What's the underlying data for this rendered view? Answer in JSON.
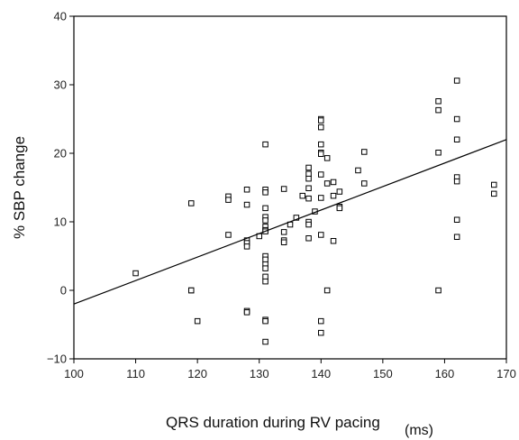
{
  "chart_data": {
    "type": "scatter",
    "xlabel": "QRS duration during RV pacing",
    "xunit": "(ms)",
    "ylabel": "% SBP change",
    "xlim": [
      100,
      170
    ],
    "ylim": [
      -10,
      40
    ],
    "xticks": [
      "100",
      "110",
      "120",
      "130",
      "140",
      "150",
      "160",
      "170"
    ],
    "yticks": [
      "-10",
      "0",
      "10",
      "20",
      "30",
      "40"
    ],
    "grid": false,
    "marker": "open-square",
    "fit_line": {
      "x": [
        100,
        170
      ],
      "y": [
        -2,
        22
      ]
    },
    "points": [
      [
        110,
        2.5
      ],
      [
        119,
        12.7
      ],
      [
        119,
        0
      ],
      [
        119,
        0
      ],
      [
        120,
        -4.5
      ],
      [
        125,
        13.7
      ],
      [
        125,
        13.2
      ],
      [
        125,
        8.1
      ],
      [
        128,
        14.7
      ],
      [
        128,
        12.5
      ],
      [
        128,
        7.3
      ],
      [
        128,
        6.9
      ],
      [
        128,
        6.4
      ],
      [
        128,
        -3
      ],
      [
        128,
        -3.2
      ],
      [
        130,
        7.9
      ],
      [
        131,
        21.3
      ],
      [
        131,
        14.7
      ],
      [
        131,
        14.3
      ],
      [
        131,
        12
      ],
      [
        131,
        10.7
      ],
      [
        131,
        10.2
      ],
      [
        131,
        9.3
      ],
      [
        131,
        8.8
      ],
      [
        131,
        8.6
      ],
      [
        131,
        5
      ],
      [
        131,
        4.5
      ],
      [
        131,
        3.8
      ],
      [
        131,
        3.2
      ],
      [
        131,
        2
      ],
      [
        131,
        1.3
      ],
      [
        131,
        -4.3
      ],
      [
        131,
        -4.5
      ],
      [
        131,
        -7.5
      ],
      [
        134,
        14.8
      ],
      [
        134,
        8.5
      ],
      [
        134,
        7.3
      ],
      [
        134,
        7
      ],
      [
        135,
        9.6
      ],
      [
        136,
        10.6
      ],
      [
        137,
        13.8
      ],
      [
        138,
        17.9
      ],
      [
        138,
        17
      ],
      [
        138,
        16.3
      ],
      [
        138,
        14.9
      ],
      [
        138,
        13.4
      ],
      [
        138,
        10
      ],
      [
        138,
        9.6
      ],
      [
        138,
        7.6
      ],
      [
        139,
        11.5
      ],
      [
        140,
        25
      ],
      [
        140,
        24.8
      ],
      [
        140,
        23.8
      ],
      [
        140,
        21.3
      ],
      [
        140,
        20.1
      ],
      [
        140,
        19.9
      ],
      [
        140,
        16.9
      ],
      [
        140,
        13.5
      ],
      [
        140,
        8.1
      ],
      [
        140,
        -4.5
      ],
      [
        140,
        -6.2
      ],
      [
        141,
        19.3
      ],
      [
        141,
        15.6
      ],
      [
        141,
        0
      ],
      [
        142,
        15.8
      ],
      [
        142,
        13.8
      ],
      [
        142,
        7.2
      ],
      [
        143,
        14.4
      ],
      [
        143,
        12.2
      ],
      [
        143,
        12
      ],
      [
        146,
        17.5
      ],
      [
        147,
        20.2
      ],
      [
        147,
        15.6
      ],
      [
        159,
        27.6
      ],
      [
        159,
        26.3
      ],
      [
        159,
        20.1
      ],
      [
        159,
        0
      ],
      [
        162,
        30.6
      ],
      [
        162,
        25
      ],
      [
        162,
        22
      ],
      [
        162,
        16.5
      ],
      [
        162,
        15.9
      ],
      [
        162,
        10.3
      ],
      [
        162,
        7.8
      ],
      [
        168,
        15.4
      ],
      [
        168,
        14.1
      ]
    ]
  }
}
